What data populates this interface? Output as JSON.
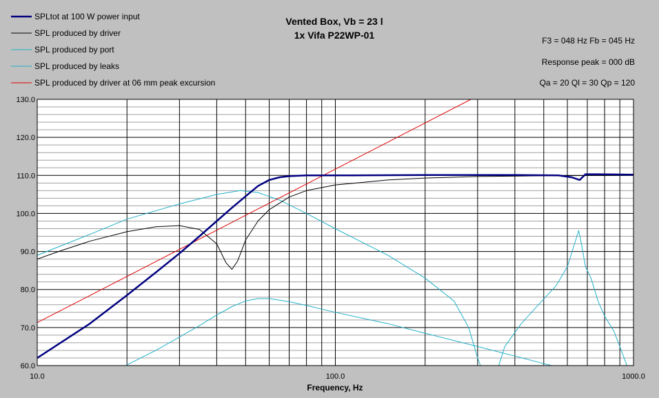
{
  "chart_data": {
    "type": "line",
    "title": "Vented Box, Vb = 23 l",
    "subtitle": "1x Vifa P22WP-01",
    "xlabel": "Frequency, Hz",
    "ylabel": "",
    "x_scale": "log",
    "xlim": [
      10,
      1000
    ],
    "ylim": [
      60,
      130
    ],
    "x_tick_labels": [
      "10.0",
      "100.0",
      "1000.0"
    ],
    "y_tick_labels": [
      "60.0",
      "70.0",
      "80.0",
      "90.0",
      "100.0",
      "110.0",
      "120.0",
      "130.0"
    ],
    "grid": true,
    "legend_position": "top-left",
    "annotations": {
      "line1": "F3 = 048 Hz  Fb = 045 Hz",
      "line2": "Response peak = 000 dB",
      "line3": "Qa = 20  Ql = 30  Qp = 120"
    },
    "series": [
      {
        "name": "SPLtot at 100 W power input",
        "color": "#000080",
        "width": 2.5,
        "points": [
          [
            10,
            62
          ],
          [
            15,
            71
          ],
          [
            20,
            78.5
          ],
          [
            25,
            84.5
          ],
          [
            30,
            89.5
          ],
          [
            35,
            94
          ],
          [
            40,
            98
          ],
          [
            45,
            101.5
          ],
          [
            50,
            104.5
          ],
          [
            55,
            107.2
          ],
          [
            60,
            108.8
          ],
          [
            65,
            109.5
          ],
          [
            70,
            109.8
          ],
          [
            80,
            110
          ],
          [
            100,
            110
          ],
          [
            200,
            110.1
          ],
          [
            400,
            110.1
          ],
          [
            560,
            110
          ],
          [
            620,
            109.5
          ],
          [
            660,
            108.8
          ],
          [
            690,
            110.3
          ],
          [
            750,
            110.3
          ],
          [
            1000,
            110.2
          ]
        ]
      },
      {
        "name": "SPL produced by driver",
        "color": "#000000",
        "width": 1,
        "points": [
          [
            10,
            88
          ],
          [
            12,
            90.2
          ],
          [
            15,
            92.7
          ],
          [
            20,
            95.2
          ],
          [
            25,
            96.5
          ],
          [
            30,
            96.8
          ],
          [
            35,
            95.8
          ],
          [
            40,
            92
          ],
          [
            43,
            87
          ],
          [
            45,
            85.3
          ],
          [
            47,
            87.5
          ],
          [
            50,
            93
          ],
          [
            55,
            98
          ],
          [
            60,
            101
          ],
          [
            70,
            104.3
          ],
          [
            80,
            106
          ],
          [
            100,
            107.5
          ],
          [
            150,
            108.8
          ],
          [
            200,
            109.3
          ],
          [
            300,
            109.7
          ],
          [
            500,
            109.9
          ],
          [
            1000,
            110
          ]
        ]
      },
      {
        "name": "SPL produced by port",
        "color": "#20b0c8",
        "width": 1,
        "points": [
          [
            10,
            89
          ],
          [
            15,
            94.5
          ],
          [
            20,
            98.5
          ],
          [
            30,
            102.5
          ],
          [
            40,
            105
          ],
          [
            48,
            106
          ],
          [
            55,
            105.5
          ],
          [
            65,
            103.5
          ],
          [
            80,
            100
          ],
          [
            100,
            96
          ],
          [
            150,
            89
          ],
          [
            200,
            83
          ],
          [
            250,
            77
          ],
          [
            280,
            70
          ],
          [
            300,
            62
          ],
          [
            310,
            59
          ],
          [
            350,
            59
          ],
          [
            370,
            65
          ],
          [
            420,
            71
          ],
          [
            480,
            76
          ],
          [
            550,
            81
          ],
          [
            600,
            86
          ],
          [
            640,
            93
          ],
          [
            655,
            95.5
          ],
          [
            665,
            93
          ],
          [
            690,
            86
          ],
          [
            720,
            83
          ],
          [
            760,
            77
          ],
          [
            800,
            73
          ],
          [
            860,
            69
          ],
          [
            900,
            65
          ],
          [
            940,
            61
          ],
          [
            960,
            59
          ]
        ]
      },
      {
        "name": "SPL produced by leaks",
        "color": "#20b0c8",
        "width": 1,
        "points": [
          [
            19,
            59
          ],
          [
            20,
            60.2
          ],
          [
            25,
            64
          ],
          [
            30,
            67.5
          ],
          [
            35,
            70.5
          ],
          [
            40,
            73.3
          ],
          [
            45,
            75.5
          ],
          [
            50,
            77
          ],
          [
            55,
            77.6
          ],
          [
            60,
            77.6
          ],
          [
            70,
            76.8
          ],
          [
            80,
            75.8
          ],
          [
            100,
            74
          ],
          [
            150,
            71
          ],
          [
            200,
            68.5
          ],
          [
            300,
            65
          ],
          [
            400,
            62.5
          ],
          [
            500,
            60.5
          ],
          [
            600,
            59
          ]
        ]
      },
      {
        "name": "SPL produced by driver at 06 mm peak excursion",
        "color": "#e00000",
        "width": 1,
        "points": [
          [
            10,
            71.3
          ],
          [
            285,
            130
          ]
        ]
      }
    ]
  }
}
